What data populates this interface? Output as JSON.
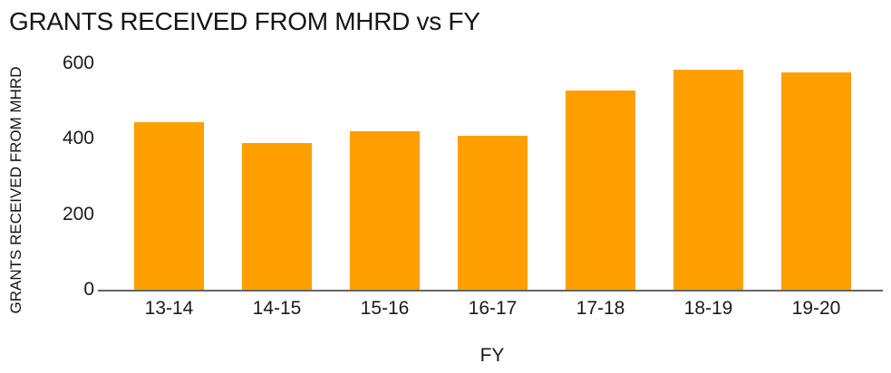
{
  "chart_data": {
    "type": "bar",
    "title": "GRANTS RECEIVED FROM MHRD vs FY",
    "xlabel": "FY",
    "ylabel": "GRANTS RECEIVED FROM MHRD",
    "categories": [
      "13-14",
      "14-15",
      "15-16",
      "16-17",
      "17-18",
      "18-19",
      "19-20"
    ],
    "values": [
      445,
      390,
      420,
      408,
      527,
      583,
      576
    ],
    "ylim": [
      0,
      600
    ],
    "yticks": [
      0,
      200,
      400,
      600
    ],
    "grid": false,
    "legend": false,
    "bar_color": "#FFA000"
  },
  "colors": {
    "bar": "#FFA000",
    "axis_line": "#666666",
    "text": "#1A1A1A",
    "background": "#FFFFFF"
  }
}
